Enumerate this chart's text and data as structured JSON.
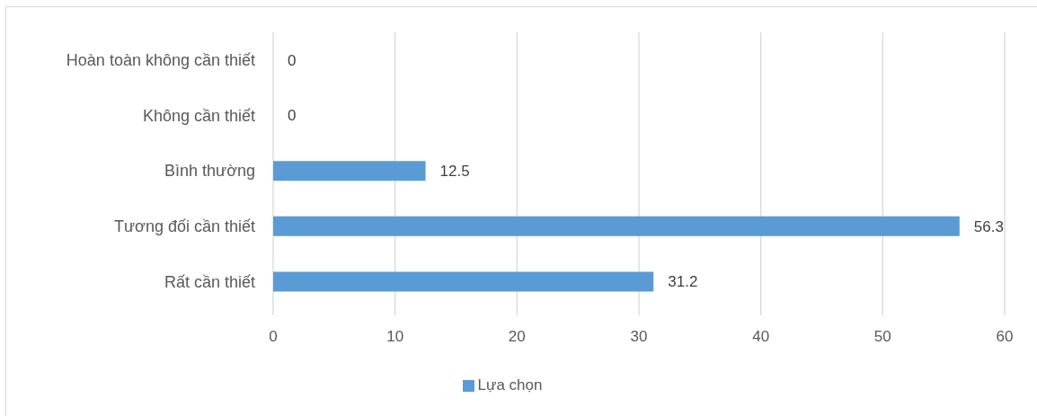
{
  "chart_data": {
    "type": "bar",
    "orientation": "horizontal",
    "categories": [
      "Hoàn toàn không cần thiết",
      "Không cần thiết",
      "Bình thường",
      "Tương đối cần thiết",
      "Rất cần thiết"
    ],
    "series": [
      {
        "name": "Lựa chọn",
        "color": "#5b9bd5",
        "values": [
          0,
          0,
          12.5,
          56.3,
          31.2
        ]
      }
    ],
    "xlim": [
      0,
      60
    ],
    "xticks": [
      0,
      10,
      20,
      30,
      40,
      50,
      60
    ],
    "grid": "x",
    "legend": "bottom",
    "data_labels": true
  }
}
